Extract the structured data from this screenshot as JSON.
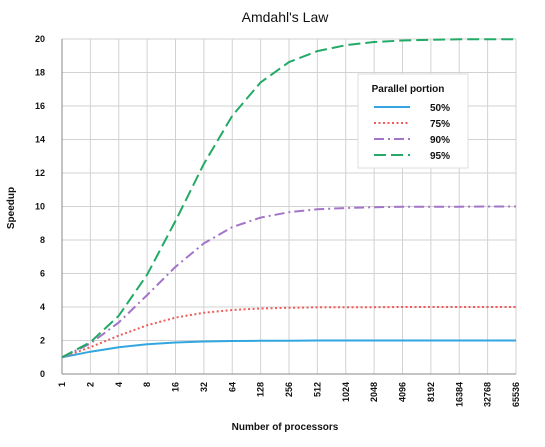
{
  "chart_data": {
    "type": "line",
    "title": "Amdahl's Law",
    "xlabel": "Number of processors",
    "ylabel": "Speedup",
    "x_scale": "log2",
    "x": [
      1,
      2,
      4,
      8,
      16,
      32,
      64,
      128,
      256,
      512,
      1024,
      2048,
      4096,
      8192,
      16384,
      32768,
      65536
    ],
    "x_tick_labels": [
      "1",
      "2",
      "4",
      "8",
      "16",
      "32",
      "64",
      "128",
      "256",
      "512",
      "1024",
      "2048",
      "4096",
      "8192",
      "16384",
      "32768",
      "65536"
    ],
    "ylim": [
      0,
      20
    ],
    "y_ticks": [
      0,
      2,
      4,
      6,
      8,
      10,
      12,
      14,
      16,
      18,
      20
    ],
    "grid": true,
    "legend": {
      "title": "Parallel portion",
      "placement": "upper-right"
    },
    "series": [
      {
        "name": "50%",
        "color": "#33a6e0",
        "dash": "solid",
        "values": [
          1.0,
          1.33,
          1.6,
          1.78,
          1.88,
          1.94,
          1.97,
          1.98,
          1.99,
          2.0,
          2.0,
          2.0,
          2.0,
          2.0,
          2.0,
          2.0,
          2.0
        ]
      },
      {
        "name": "75%",
        "color": "#f05a5a",
        "dash": "dotted",
        "values": [
          1.0,
          1.6,
          2.29,
          2.91,
          3.37,
          3.66,
          3.82,
          3.91,
          3.95,
          3.98,
          3.99,
          3.99,
          4.0,
          4.0,
          4.0,
          4.0,
          4.0
        ]
      },
      {
        "name": "90%",
        "color": "#a374c8",
        "dash": "dashdot",
        "values": [
          1.0,
          1.82,
          3.08,
          4.71,
          6.4,
          7.8,
          8.77,
          9.34,
          9.66,
          9.83,
          9.91,
          9.96,
          9.98,
          9.99,
          9.99,
          10.0,
          10.0
        ]
      },
      {
        "name": "95%",
        "color": "#22aa66",
        "dash": "dashed",
        "values": [
          1.0,
          1.9,
          3.48,
          5.93,
          9.14,
          12.55,
          15.42,
          17.41,
          18.62,
          19.28,
          19.63,
          19.82,
          19.91,
          19.95,
          19.98,
          19.99,
          19.99
        ]
      }
    ]
  }
}
